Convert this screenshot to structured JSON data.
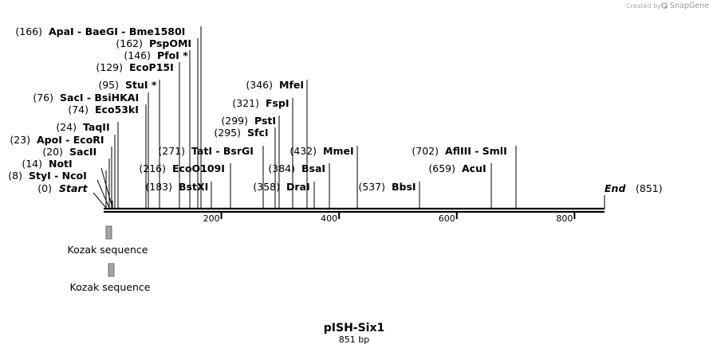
{
  "header": {
    "credit_prefix": "Created by",
    "brand": "SnapGene"
  },
  "plasmid": {
    "name": "pISH-Six1",
    "length_label": "851 bp",
    "length": 851
  },
  "map_ends": {
    "start": {
      "position": "(0)",
      "name": "Start"
    },
    "end": {
      "name": "End",
      "position": "(851)"
    }
  },
  "ruler": {
    "ticks": [
      {
        "value": 200,
        "label": "200"
      },
      {
        "value": 400,
        "label": "400"
      },
      {
        "value": 600,
        "label": "600"
      },
      {
        "value": 800,
        "label": "800"
      }
    ]
  },
  "sites": [
    {
      "position_label": "(8)",
      "names": "StyI  -  NcoI"
    },
    {
      "position_label": "(14)",
      "names": "NotI"
    },
    {
      "position_label": "(20)",
      "names": "SacII"
    },
    {
      "position_label": "(23)",
      "names": "ApoI  -  EcoRI"
    },
    {
      "position_label": "(24)",
      "names": "TaqII"
    },
    {
      "position_label": "(74)",
      "names": "Eco53kI"
    },
    {
      "position_label": "(76)",
      "names": "SacI  -  BsiHKAI"
    },
    {
      "position_label": "(95)",
      "names": "StuI *"
    },
    {
      "position_label": "(129)",
      "names": "EcoP15I"
    },
    {
      "position_label": "(146)",
      "names": "PfoI *"
    },
    {
      "position_label": "(162)",
      "names": "PspOMI"
    },
    {
      "position_label": "(166)",
      "names": "ApaI  -  BaeGI  -  Bme1580I"
    },
    {
      "position_label": "(183)",
      "names": "BstXI"
    },
    {
      "position_label": "(216)",
      "names": "EcoO109I"
    },
    {
      "position_label": "(271)",
      "names": "TatI  -  BsrGI"
    },
    {
      "position_label": "(295)",
      "names": "SfcI"
    },
    {
      "position_label": "(299)",
      "names": "PstI"
    },
    {
      "position_label": "(321)",
      "names": "FspI"
    },
    {
      "position_label": "(346)",
      "names": "MfeI"
    },
    {
      "position_label": "(358)",
      "names": "DraI"
    },
    {
      "position_label": "(384)",
      "names": "BsaI"
    },
    {
      "position_label": "(432)",
      "names": "MmeI"
    },
    {
      "position_label": "(537)",
      "names": "BbsI"
    },
    {
      "position_label": "(659)",
      "names": "AcuI"
    },
    {
      "position_label": "(702)",
      "names": "AflIII  -  SmlI"
    }
  ],
  "features": [
    {
      "name": "Kozak sequence",
      "color": "#a6a6a6"
    },
    {
      "name": "Kozak sequence",
      "color": "#a6a6a6"
    }
  ]
}
